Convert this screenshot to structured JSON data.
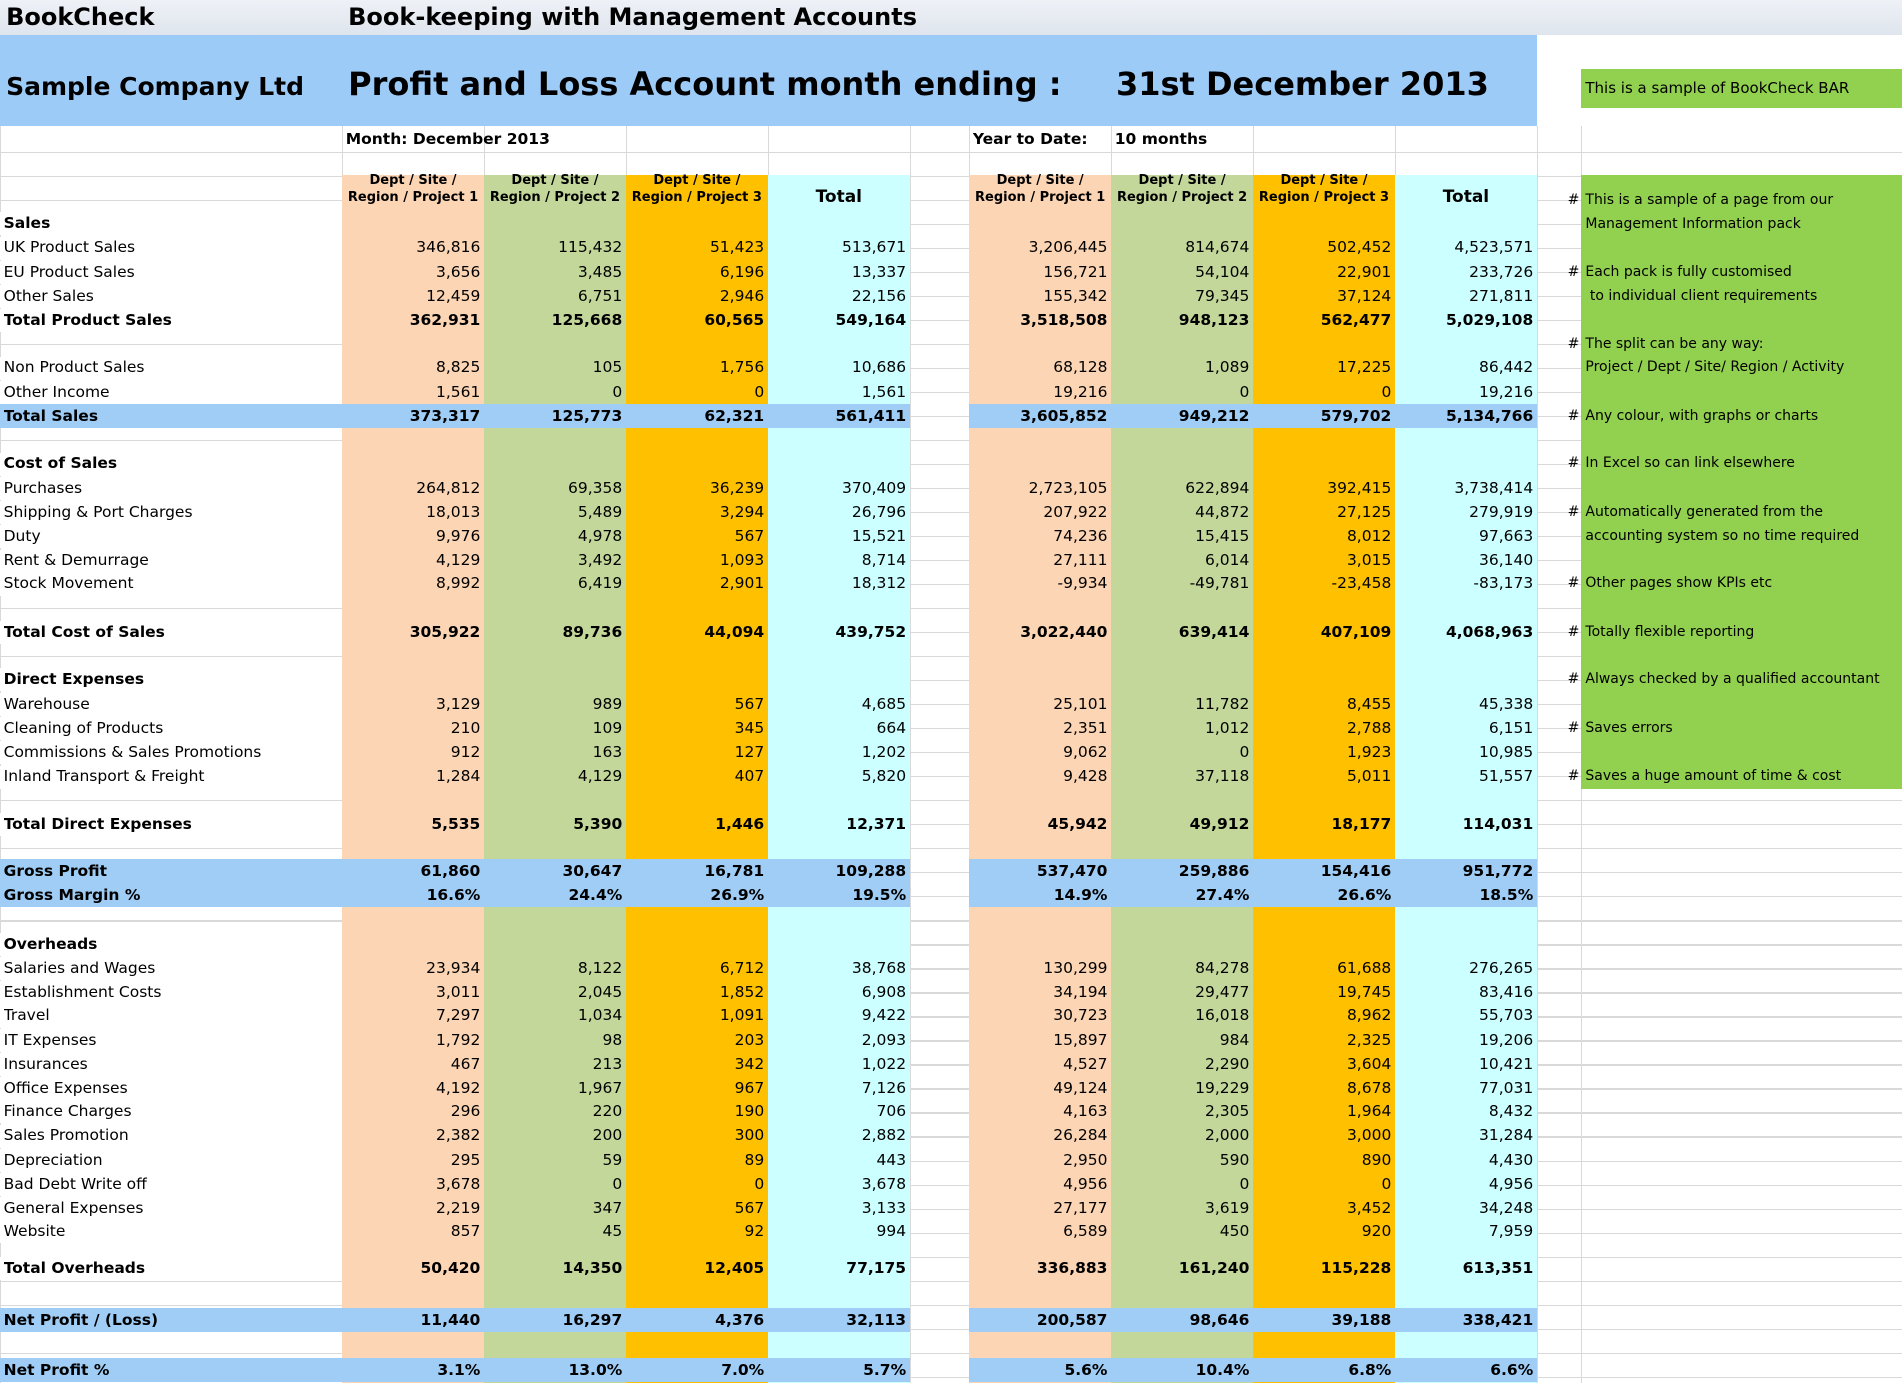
{
  "header": {
    "app": "BookCheck",
    "subtitle": "Book-keeping with Management Accounts",
    "company": "Sample Company Ltd",
    "report_title": "Profit and Loss Account month ending :",
    "date": "31st December 2013",
    "badge": "This is a sample of BookCheck BAR",
    "month_label": "Month: December 2013",
    "ytd_label": "Year to Date:",
    "ytd_value": "10 months"
  },
  "columns": [
    [
      "Dept / Site /",
      "Region / Project 1"
    ],
    [
      "Dept / Site /",
      "Region / Project 2"
    ],
    [
      "Dept / Site /",
      "Region / Project 3"
    ],
    [
      "Total"
    ]
  ],
  "ytd_columns": [
    [
      "Dept / Site /",
      "Region / Project 1"
    ],
    [
      "Dept / Site /",
      "Region / Project 2"
    ],
    [
      "Dept / Site /",
      "Region / Project 3"
    ],
    [
      "Total"
    ]
  ],
  "rows": [
    {
      "label": "Sales",
      "kind": "heading"
    },
    {
      "label": "UK Product Sales",
      "month": [
        "346,816",
        "115,432",
        "51,423",
        "513,671"
      ],
      "ytd": [
        "3,206,445",
        "814,674",
        "502,452",
        "4,523,571"
      ]
    },
    {
      "label": "EU Product Sales",
      "month": [
        "3,656",
        "3,485",
        "6,196",
        "13,337"
      ],
      "ytd": [
        "156,721",
        "54,104",
        "22,901",
        "233,726"
      ]
    },
    {
      "label": "Other Sales",
      "month": [
        "12,459",
        "6,751",
        "2,946",
        "22,156"
      ],
      "ytd": [
        "155,342",
        "79,345",
        "37,124",
        "271,811"
      ]
    },
    {
      "label": "Total Product Sales",
      "kind": "total",
      "month": [
        "362,931",
        "125,668",
        "60,565",
        "549,164"
      ],
      "ytd": [
        "3,518,508",
        "948,123",
        "562,477",
        "5,029,108"
      ]
    },
    {
      "label": "Non Product Sales",
      "month": [
        "8,825",
        "105",
        "1,756",
        "10,686"
      ],
      "ytd": [
        "68,128",
        "1,089",
        "17,225",
        "86,442"
      ]
    },
    {
      "label": "Other Income",
      "month": [
        "1,561",
        "0",
        "0",
        "1,561"
      ],
      "ytd": [
        "19,216",
        "0",
        "0",
        "19,216"
      ]
    },
    {
      "label": "Total Sales",
      "kind": "band",
      "month": [
        "373,317",
        "125,773",
        "62,321",
        "561,411"
      ],
      "ytd": [
        "3,605,852",
        "949,212",
        "579,702",
        "5,134,766"
      ]
    },
    {
      "label": "Cost of Sales",
      "kind": "heading"
    },
    {
      "label": "Purchases",
      "month": [
        "264,812",
        "69,358",
        "36,239",
        "370,409"
      ],
      "ytd": [
        "2,723,105",
        "622,894",
        "392,415",
        "3,738,414"
      ]
    },
    {
      "label": "Shipping & Port Charges",
      "month": [
        "18,013",
        "5,489",
        "3,294",
        "26,796"
      ],
      "ytd": [
        "207,922",
        "44,872",
        "27,125",
        "279,919"
      ]
    },
    {
      "label": "Duty",
      "month": [
        "9,976",
        "4,978",
        "567",
        "15,521"
      ],
      "ytd": [
        "74,236",
        "15,415",
        "8,012",
        "97,663"
      ]
    },
    {
      "label": "Rent & Demurrage",
      "month": [
        "4,129",
        "3,492",
        "1,093",
        "8,714"
      ],
      "ytd": [
        "27,111",
        "6,014",
        "3,015",
        "36,140"
      ]
    },
    {
      "label": "Stock Movement",
      "month": [
        "8,992",
        "6,419",
        "2,901",
        "18,312"
      ],
      "ytd": [
        "-9,934",
        "-49,781",
        "-23,458",
        "-83,173"
      ]
    },
    {
      "label": "Total Cost of Sales",
      "kind": "total",
      "month": [
        "305,922",
        "89,736",
        "44,094",
        "439,752"
      ],
      "ytd": [
        "3,022,440",
        "639,414",
        "407,109",
        "4,068,963"
      ]
    },
    {
      "label": "Direct Expenses",
      "kind": "heading"
    },
    {
      "label": "Warehouse",
      "month": [
        "3,129",
        "989",
        "567",
        "4,685"
      ],
      "ytd": [
        "25,101",
        "11,782",
        "8,455",
        "45,338"
      ]
    },
    {
      "label": "Cleaning of Products",
      "month": [
        "210",
        "109",
        "345",
        "664"
      ],
      "ytd": [
        "2,351",
        "1,012",
        "2,788",
        "6,151"
      ]
    },
    {
      "label": "Commissions & Sales Promotions",
      "month": [
        "912",
        "163",
        "127",
        "1,202"
      ],
      "ytd": [
        "9,062",
        "0",
        "1,923",
        "10,985"
      ]
    },
    {
      "label": "Inland Transport & Freight",
      "month": [
        "1,284",
        "4,129",
        "407",
        "5,820"
      ],
      "ytd": [
        "9,428",
        "37,118",
        "5,011",
        "51,557"
      ]
    },
    {
      "label": "Total Direct Expenses",
      "kind": "total",
      "month": [
        "5,535",
        "5,390",
        "1,446",
        "12,371"
      ],
      "ytd": [
        "45,942",
        "49,912",
        "18,177",
        "114,031"
      ]
    },
    {
      "label": "Gross Profit",
      "kind": "band",
      "month": [
        "61,860",
        "30,647",
        "16,781",
        "109,288"
      ],
      "ytd": [
        "537,470",
        "259,886",
        "154,416",
        "951,772"
      ]
    },
    {
      "label": "Gross Margin %",
      "kind": "band",
      "month": [
        "16.6%",
        "24.4%",
        "26.9%",
        "19.5%"
      ],
      "ytd": [
        "14.9%",
        "27.4%",
        "26.6%",
        "18.5%"
      ]
    },
    {
      "label": "Overheads",
      "kind": "heading"
    },
    {
      "label": "Salaries and Wages",
      "month": [
        "23,934",
        "8,122",
        "6,712",
        "38,768"
      ],
      "ytd": [
        "130,299",
        "84,278",
        "61,688",
        "276,265"
      ]
    },
    {
      "label": "Establishment Costs",
      "month": [
        "3,011",
        "2,045",
        "1,852",
        "6,908"
      ],
      "ytd": [
        "34,194",
        "29,477",
        "19,745",
        "83,416"
      ]
    },
    {
      "label": "Travel",
      "month": [
        "7,297",
        "1,034",
        "1,091",
        "9,422"
      ],
      "ytd": [
        "30,723",
        "16,018",
        "8,962",
        "55,703"
      ]
    },
    {
      "label": "IT Expenses",
      "month": [
        "1,792",
        "98",
        "203",
        "2,093"
      ],
      "ytd": [
        "15,897",
        "984",
        "2,325",
        "19,206"
      ]
    },
    {
      "label": "Insurances",
      "month": [
        "467",
        "213",
        "342",
        "1,022"
      ],
      "ytd": [
        "4,527",
        "2,290",
        "3,604",
        "10,421"
      ]
    },
    {
      "label": "Office Expenses",
      "month": [
        "4,192",
        "1,967",
        "967",
        "7,126"
      ],
      "ytd": [
        "49,124",
        "19,229",
        "8,678",
        "77,031"
      ]
    },
    {
      "label": "Finance Charges",
      "month": [
        "296",
        "220",
        "190",
        "706"
      ],
      "ytd": [
        "4,163",
        "2,305",
        "1,964",
        "8,432"
      ]
    },
    {
      "label": "Sales Promotion",
      "month": [
        "2,382",
        "200",
        "300",
        "2,882"
      ],
      "ytd": [
        "26,284",
        "2,000",
        "3,000",
        "31,284"
      ]
    },
    {
      "label": "Depreciation",
      "month": [
        "295",
        "59",
        "89",
        "443"
      ],
      "ytd": [
        "2,950",
        "590",
        "890",
        "4,430"
      ]
    },
    {
      "label": "Bad Debt Write off",
      "month": [
        "3,678",
        "0",
        "0",
        "3,678"
      ],
      "ytd": [
        "4,956",
        "0",
        "0",
        "4,956"
      ]
    },
    {
      "label": "General Expenses",
      "month": [
        "2,219",
        "347",
        "567",
        "3,133"
      ],
      "ytd": [
        "27,177",
        "3,619",
        "3,452",
        "34,248"
      ]
    },
    {
      "label": "Website",
      "month": [
        "857",
        "45",
        "92",
        "994"
      ],
      "ytd": [
        "6,589",
        "450",
        "920",
        "7,959"
      ]
    },
    {
      "label": "Total Overheads",
      "kind": "total",
      "month": [
        "50,420",
        "14,350",
        "12,405",
        "77,175"
      ],
      "ytd": [
        "336,883",
        "161,240",
        "115,228",
        "613,351"
      ]
    },
    {
      "label": "Net Profit / (Loss)",
      "kind": "band",
      "month": [
        "11,440",
        "16,297",
        "4,376",
        "32,113"
      ],
      "ytd": [
        "200,587",
        "98,646",
        "39,188",
        "338,421"
      ]
    },
    {
      "label": "Net Profit %",
      "kind": "band",
      "month": [
        "3.1%",
        "13.0%",
        "7.0%",
        "5.7%"
      ],
      "ytd": [
        "5.6%",
        "10.4%",
        "6.8%",
        "6.6%"
      ]
    }
  ],
  "notes": [
    {
      "marker": "#",
      "text": "This is a sample of a page from our"
    },
    {
      "text": "Management Information pack"
    },
    {
      "marker": "#",
      "text": "Each pack is fully customised"
    },
    {
      "text": " to individual client requirements"
    },
    {
      "marker": "#",
      "text": "The split can be any way:"
    },
    {
      "text": "Project / Dept / Site/ Region / Activity"
    },
    {
      "marker": "#",
      "text": "Any colour, with graphs or charts"
    },
    {
      "marker": "#",
      "text": "In Excel so can link elsewhere"
    },
    {
      "marker": "#",
      "text": "Automatically generated from the"
    },
    {
      "text": "accounting system so no time required"
    },
    {
      "marker": "#",
      "text": "Other pages show KPIs etc"
    },
    {
      "marker": "#",
      "text": "Totally flexible reporting"
    },
    {
      "marker": "#",
      "text": "Always checked by a qualified accountant"
    },
    {
      "marker": "#",
      "text": "Saves errors"
    },
    {
      "marker": "#",
      "text": "Saves a huge amount of time & cost"
    }
  ]
}
